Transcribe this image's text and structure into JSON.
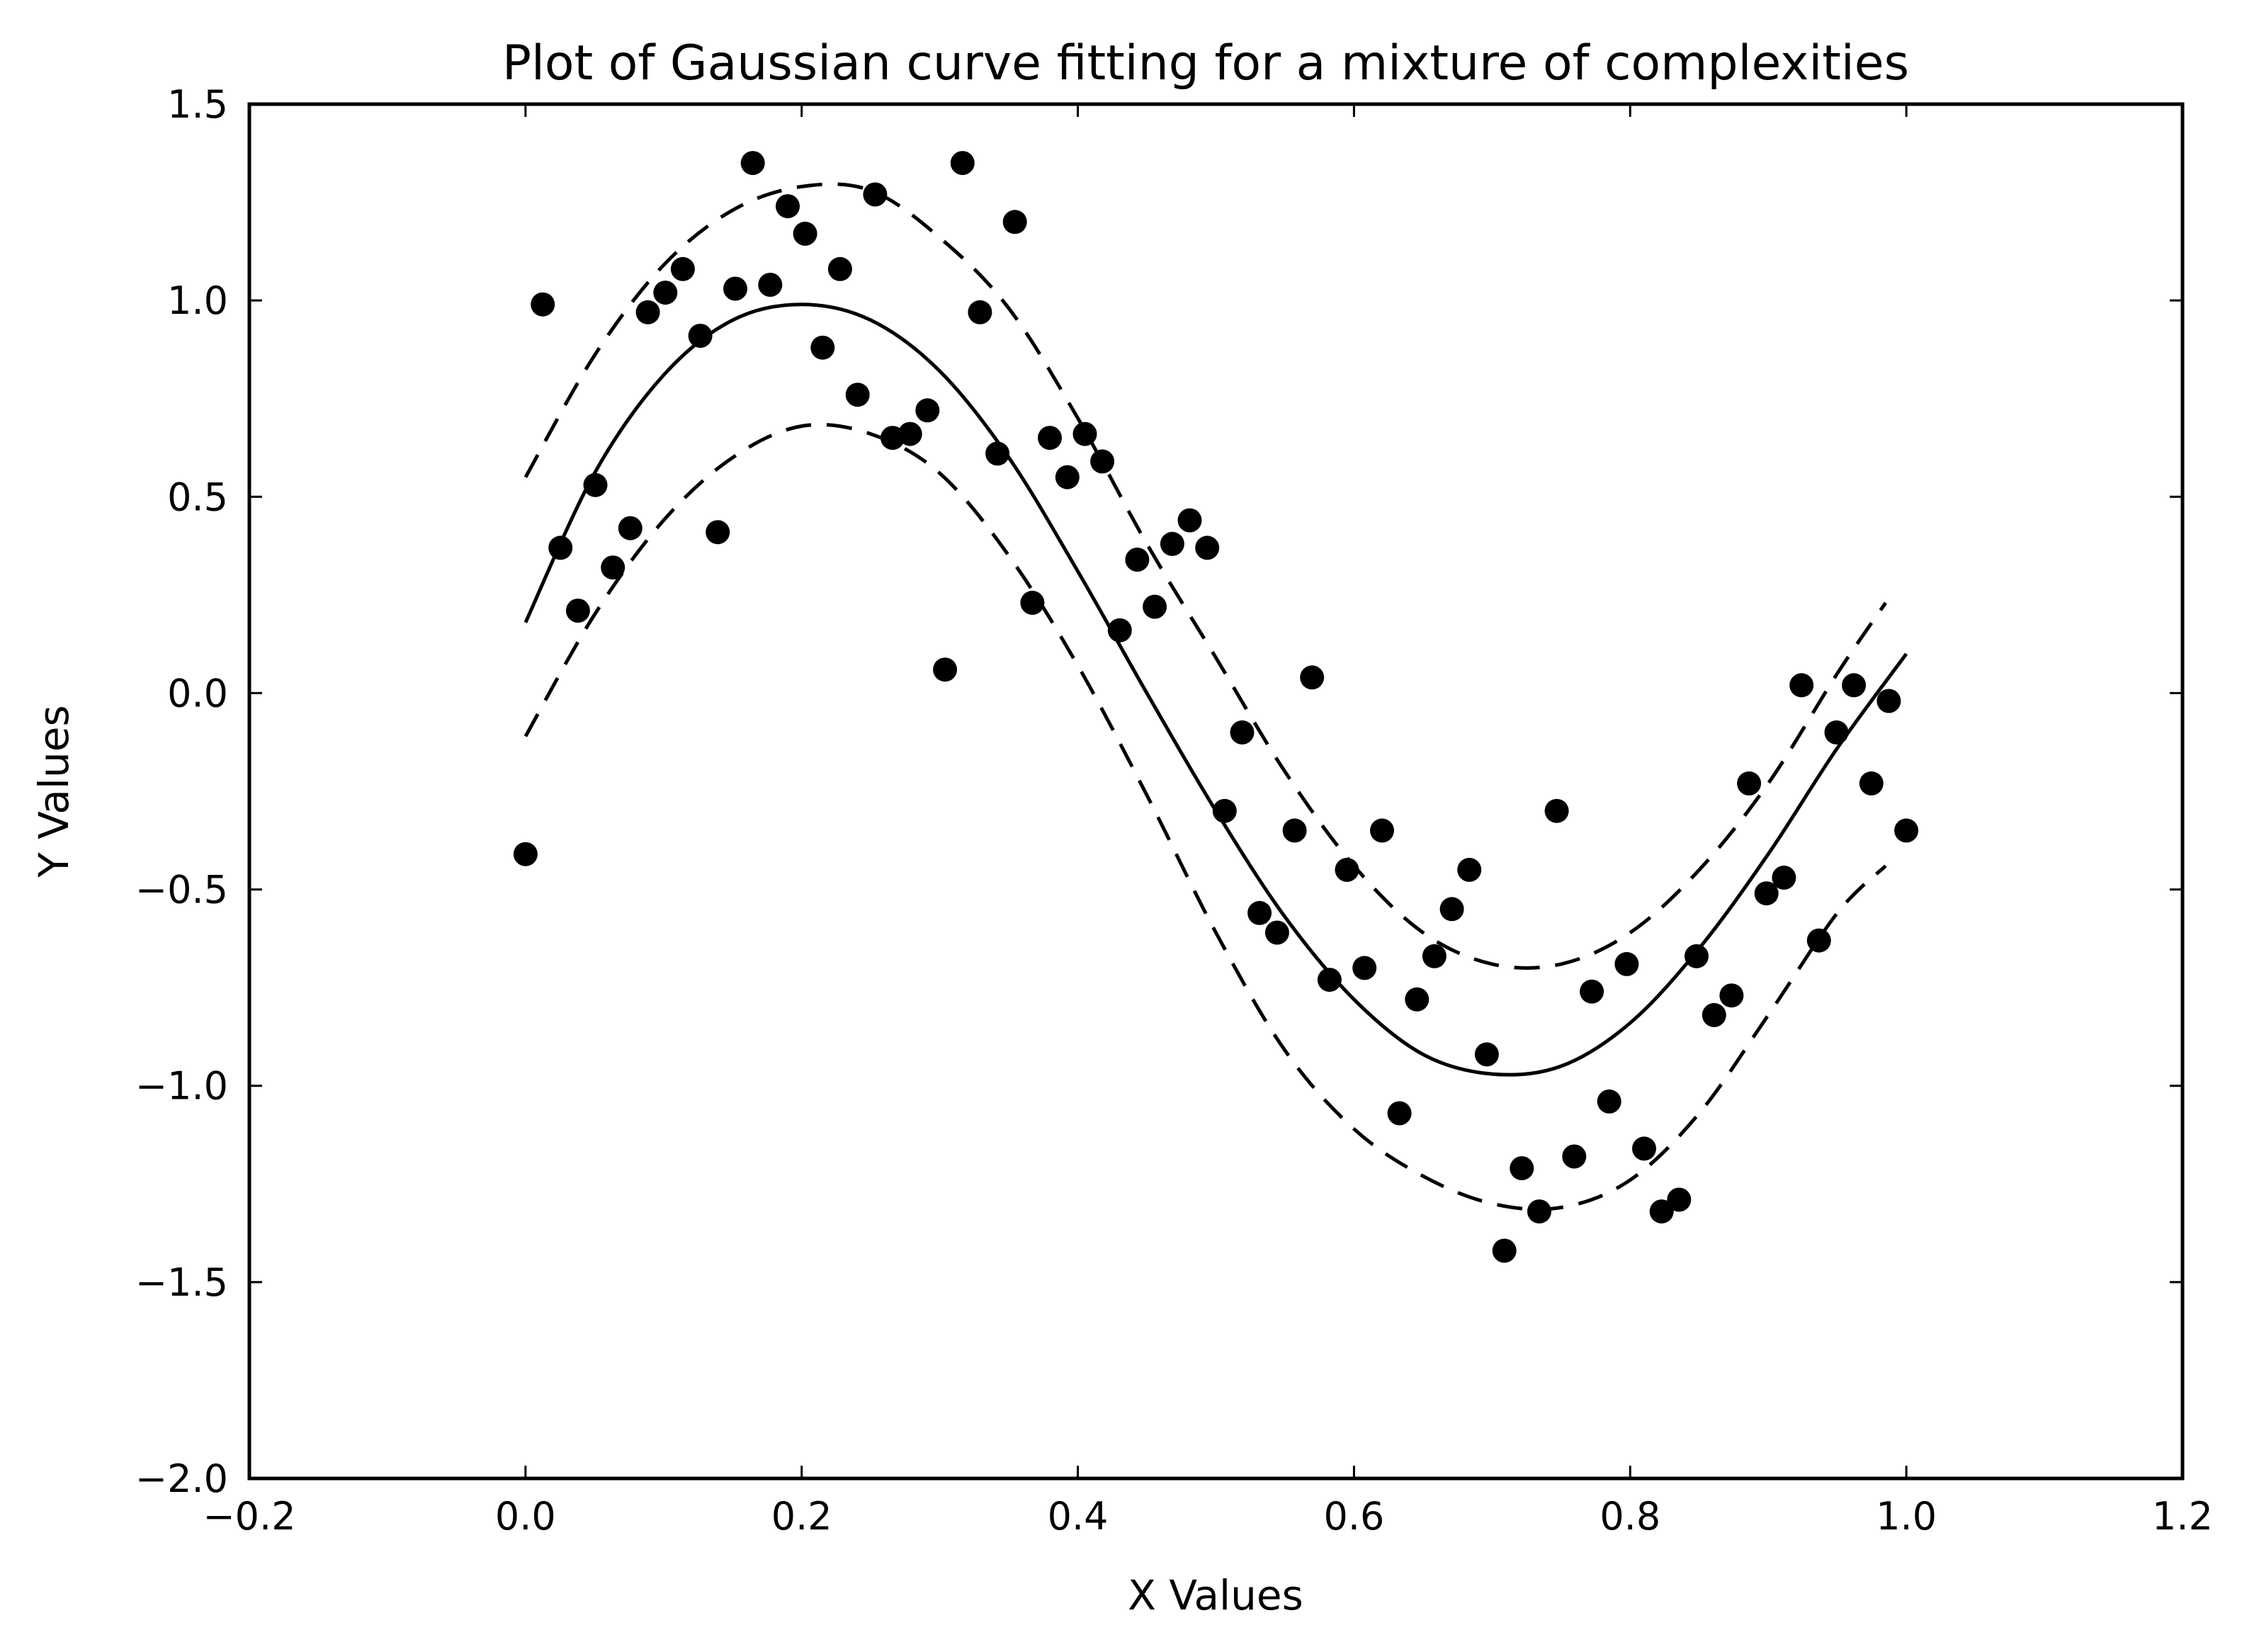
{
  "chart_data": {
    "type": "scatter",
    "title": "Plot of Gaussian curve fitting for a mixture of complexities",
    "xlabel": "X Values",
    "ylabel": "Y Values",
    "xlim": [
      -0.2,
      1.2
    ],
    "ylim": [
      -2.0,
      1.5
    ],
    "xticks": [
      -0.2,
      0.0,
      0.2,
      0.4,
      0.6,
      0.8,
      1.0,
      1.2
    ],
    "xtick_labels": [
      "−0.2",
      "0.0",
      "0.2",
      "0.4",
      "0.6",
      "0.8",
      "1.0",
      "1.2"
    ],
    "yticks": [
      -2.0,
      -1.5,
      -1.0,
      -0.5,
      0.0,
      0.5,
      1.0,
      1.5
    ],
    "ytick_labels": [
      "−2.0",
      "−1.5",
      "−1.0",
      "−0.5",
      "0.0",
      "0.5",
      "1.0",
      "1.5"
    ],
    "grid": false,
    "colors": {
      "points": "#000000",
      "lines": "#000000",
      "background": "#ffffff"
    },
    "series": [
      {
        "kind": "scatter",
        "x": [
          0.0,
          0.0125,
          0.0253,
          0.038,
          0.0506,
          0.0633,
          0.0759,
          0.0886,
          0.1013,
          0.1139,
          0.1266,
          0.1392,
          0.1519,
          0.1646,
          0.1772,
          0.1899,
          0.2025,
          0.2152,
          0.2278,
          0.2405,
          0.2532,
          0.2658,
          0.2785,
          0.2911,
          0.3038,
          0.3165,
          0.3291,
          0.3418,
          0.3544,
          0.3671,
          0.3797,
          0.3924,
          0.4051,
          0.4177,
          0.4304,
          0.443,
          0.4557,
          0.4684,
          0.481,
          0.4937,
          0.5063,
          0.519,
          0.5316,
          0.5443,
          0.557,
          0.5696,
          0.5823,
          0.5949,
          0.6076,
          0.6203,
          0.6329,
          0.6456,
          0.6582,
          0.6709,
          0.6835,
          0.6962,
          0.7089,
          0.7215,
          0.7342,
          0.7468,
          0.7595,
          0.7722,
          0.7848,
          0.7975,
          0.8101,
          0.8228,
          0.8354,
          0.8481,
          0.8608,
          0.8734,
          0.8861,
          0.8987,
          0.9114,
          0.9241,
          0.9367,
          0.9494,
          0.962,
          0.9747,
          0.9873,
          1.0
        ],
        "y": [
          -0.41,
          0.99,
          0.37,
          0.21,
          0.53,
          0.32,
          0.42,
          0.97,
          1.02,
          1.08,
          0.91,
          0.41,
          1.03,
          1.35,
          1.04,
          1.24,
          1.17,
          0.88,
          1.08,
          0.76,
          1.27,
          0.65,
          0.66,
          0.72,
          0.06,
          1.35,
          0.97,
          0.61,
          1.2,
          0.23,
          0.65,
          0.55,
          0.66,
          0.59,
          0.16,
          0.34,
          0.22,
          0.38,
          0.44,
          0.37,
          -0.3,
          -0.1,
          -0.56,
          -0.61,
          -0.35,
          0.04,
          -0.73,
          -0.45,
          -0.7,
          -0.35,
          -1.07,
          -0.78,
          -0.67,
          -0.55,
          -0.45,
          -0.92,
          -1.42,
          -1.21,
          -1.32,
          -0.3,
          -1.18,
          -0.76,
          -1.04,
          -0.69,
          -1.16,
          -1.32,
          -1.29,
          -0.67,
          -0.82,
          -0.77,
          -0.23,
          -0.51,
          -0.47,
          0.02,
          -0.63,
          -0.1,
          0.02,
          -0.23,
          -0.02,
          -0.35
        ]
      },
      {
        "kind": "line",
        "style": "solid",
        "x": [
          0.0,
          0.05,
          0.1,
          0.15,
          0.2,
          0.25,
          0.3,
          0.35,
          0.4,
          0.45,
          0.5,
          0.55,
          0.6,
          0.65,
          0.7,
          0.75,
          0.8,
          0.85,
          0.9,
          0.95,
          1.0
        ],
        "y": [
          0.18,
          0.56,
          0.81,
          0.95,
          0.99,
          0.95,
          0.82,
          0.6,
          0.31,
          0.0,
          -0.3,
          -0.57,
          -0.78,
          -0.92,
          -0.97,
          -0.95,
          -0.84,
          -0.65,
          -0.41,
          -0.14,
          0.1
        ]
      },
      {
        "kind": "line",
        "style": "dashed",
        "x": [
          0.0,
          0.05,
          0.1,
          0.15,
          0.2,
          0.25,
          0.3,
          0.35,
          0.4,
          0.45,
          0.5,
          0.55,
          0.6,
          0.65,
          0.7,
          0.75,
          0.8,
          0.85,
          0.9,
          0.95,
          0.985
        ],
        "y": [
          0.55,
          0.86,
          1.09,
          1.23,
          1.29,
          1.28,
          1.16,
          0.98,
          0.7,
          0.38,
          0.09,
          -0.2,
          -0.44,
          -0.61,
          -0.69,
          -0.69,
          -0.61,
          -0.45,
          -0.23,
          0.05,
          0.23
        ]
      },
      {
        "kind": "line",
        "style": "dashed",
        "x": [
          0.0,
          0.05,
          0.1,
          0.15,
          0.2,
          0.25,
          0.3,
          0.35,
          0.4,
          0.45,
          0.5,
          0.55,
          0.6,
          0.65,
          0.7,
          0.75,
          0.8,
          0.85,
          0.9,
          0.95,
          0.985
        ],
        "y": [
          -0.11,
          0.2,
          0.44,
          0.6,
          0.68,
          0.66,
          0.56,
          0.35,
          0.07,
          -0.26,
          -0.61,
          -0.91,
          -1.11,
          -1.23,
          -1.3,
          -1.31,
          -1.24,
          -1.07,
          -0.82,
          -0.56,
          -0.44
        ]
      }
    ]
  }
}
